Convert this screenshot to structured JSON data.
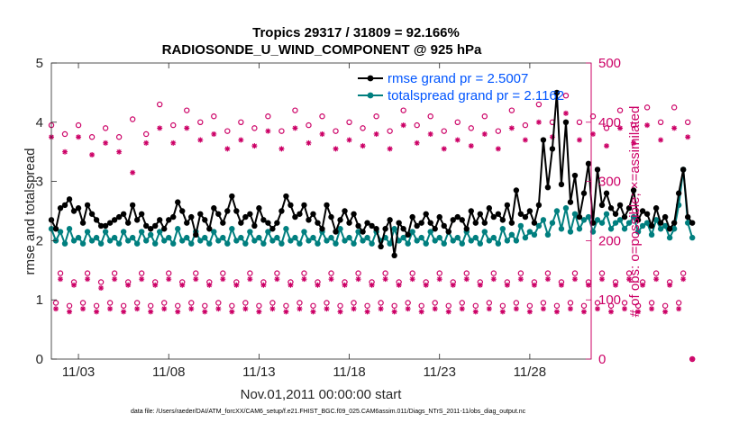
{
  "chart_data": {
    "type": "line",
    "title": "Tropics 29317 / 31809 = 92.166%",
    "subtitle": "RADIOSONDE_U_WIND_COMPONENT @ 925 hPa",
    "xlabel": "Nov.01,2011 00:00:00 start",
    "ylabel": "rmse and totalspread",
    "ylabel_right": "# of obs: o=possible; ×=assimilated",
    "footnote": "data file: /Users/raeder/DAI/ATM_forcXX/CAM6_setup/f.e21.FHIST_BGC.f09_025.CAM6assim.011/Diags_NTrS_2011-11/obs_diag_output.nc",
    "xlim": [
      1.5,
      31.4
    ],
    "ylim": [
      0,
      5
    ],
    "ylim_right": [
      0,
      500
    ],
    "x_ticks": [
      3,
      8,
      13,
      18,
      23,
      28
    ],
    "x_tick_labels": [
      "11/03",
      "11/08",
      "11/13",
      "11/18",
      "11/23",
      "11/28"
    ],
    "y_ticks": [
      0,
      1,
      2,
      3,
      4,
      5
    ],
    "y_tick_labels": [
      "0",
      "1",
      "2",
      "3",
      "4",
      "5"
    ],
    "y_ticks_right": [
      0,
      100,
      200,
      300,
      400,
      500
    ],
    "y_tick_labels_right": [
      "0",
      "100",
      "200",
      "300",
      "400",
      "500"
    ],
    "legend": [
      {
        "label": "rmse grand pr = 2.5007",
        "color": "#000000"
      },
      {
        "label": "totalspread grand pr = 2.1162",
        "color": "#007f7f"
      }
    ],
    "colors": {
      "rmse": "#000000",
      "spread": "#007f7f",
      "obs": "#cc0066"
    },
    "series": [
      {
        "name": "rmse",
        "start": 1.5,
        "step": 0.25,
        "values": [
          2.35,
          2.2,
          2.55,
          2.6,
          2.7,
          2.5,
          2.55,
          2.3,
          2.6,
          2.45,
          2.35,
          2.25,
          2.25,
          2.3,
          2.35,
          2.4,
          2.45,
          2.3,
          2.6,
          2.35,
          2.45,
          2.25,
          2.2,
          2.25,
          2.35,
          2.2,
          2.35,
          2.4,
          2.65,
          2.5,
          2.3,
          2.4,
          2.1,
          2.45,
          2.35,
          2.2,
          2.55,
          2.45,
          2.3,
          2.5,
          2.75,
          2.5,
          2.3,
          2.4,
          2.45,
          2.25,
          2.55,
          2.35,
          2.3,
          2.2,
          2.3,
          2.5,
          2.75,
          2.6,
          2.4,
          2.45,
          2.6,
          2.35,
          2.45,
          2.3,
          2.2,
          2.6,
          2.4,
          2.15,
          2.35,
          2.5,
          2.3,
          2.45,
          2.25,
          2.15,
          2.3,
          2.25,
          2.2,
          1.9,
          2.2,
          2.35,
          1.75,
          2.3,
          2.2,
          2.1,
          2.4,
          2.25,
          2.3,
          2.45,
          2.3,
          2.2,
          2.4,
          2.25,
          2.15,
          2.35,
          2.4,
          2.35,
          2.2,
          2.5,
          2.3,
          2.45,
          2.3,
          2.55,
          2.4,
          2.45,
          2.35,
          2.6,
          2.3,
          2.85,
          2.45,
          2.4,
          2.5,
          2.3,
          2.6,
          3.7,
          2.9,
          3.55,
          4.5,
          2.95,
          4.0,
          2.65,
          3.1,
          2.4,
          2.8,
          3.3,
          2.3,
          3.2,
          2.6,
          2.8,
          2.55,
          2.45,
          2.6,
          2.4,
          2.55,
          2.85,
          2.35,
          2.5,
          2.45,
          2.25,
          2.55,
          2.3,
          2.4,
          2.2,
          2.3,
          2.8,
          3.2,
          2.4,
          2.3
        ]
      },
      {
        "name": "totalspread",
        "start": 1.5,
        "step": 0.25,
        "values": [
          2.2,
          2.0,
          2.15,
          1.95,
          2.2,
          2.0,
          2.05,
          1.95,
          2.15,
          2.0,
          2.05,
          1.95,
          2.15,
          2.0,
          2.05,
          1.95,
          2.15,
          2.0,
          2.05,
          1.95,
          2.15,
          2.0,
          2.1,
          1.95,
          2.15,
          2.0,
          2.05,
          1.95,
          2.2,
          2.0,
          2.05,
          1.95,
          2.15,
          2.0,
          2.05,
          1.95,
          2.15,
          2.0,
          2.05,
          1.95,
          2.2,
          2.0,
          2.05,
          1.95,
          2.15,
          2.0,
          2.05,
          1.95,
          2.15,
          2.0,
          2.05,
          1.95,
          2.2,
          2.0,
          2.05,
          1.95,
          2.15,
          2.0,
          2.05,
          1.95,
          2.15,
          2.0,
          2.05,
          1.95,
          2.2,
          2.0,
          2.05,
          1.95,
          2.15,
          2.0,
          2.05,
          1.95,
          2.15,
          2.0,
          2.05,
          1.95,
          2.2,
          2.0,
          2.05,
          1.95,
          2.15,
          2.0,
          2.05,
          1.95,
          2.15,
          2.0,
          2.05,
          1.95,
          2.15,
          2.0,
          2.05,
          1.95,
          2.15,
          2.0,
          2.05,
          1.95,
          2.15,
          2.0,
          2.05,
          1.95,
          2.2,
          2.0,
          2.1,
          2.0,
          2.25,
          2.05,
          2.15,
          2.1,
          2.25,
          2.35,
          2.1,
          2.3,
          2.5,
          2.2,
          2.55,
          2.15,
          2.45,
          2.2,
          2.35,
          2.4,
          2.15,
          2.35,
          2.3,
          2.45,
          2.2,
          2.3,
          2.35,
          2.2,
          2.3,
          2.4,
          2.15,
          2.25,
          2.3,
          2.1,
          2.35,
          2.2,
          2.25,
          2.05,
          2.2,
          2.6,
          3.2,
          2.3,
          2.05
        ]
      },
      {
        "name": "obs_possible",
        "axis": "right",
        "start": 1.5,
        "step": 0.25,
        "values": [
          395,
          95,
          145,
          380,
          90,
          130,
          395,
          95,
          145,
          375,
          90,
          130,
          390,
          95,
          145,
          375,
          90,
          130,
          405,
          95,
          145,
          380,
          90,
          130,
          430,
          95,
          145,
          395,
          90,
          130,
          420,
          95,
          145,
          400,
          90,
          130,
          410,
          95,
          145,
          385,
          90,
          130,
          400,
          95,
          145,
          390,
          90,
          130,
          410,
          95,
          145,
          385,
          90,
          130,
          420,
          95,
          145,
          395,
          90,
          130,
          410,
          95,
          145,
          385,
          90,
          130,
          400,
          95,
          145,
          390,
          90,
          130,
          410,
          95,
          145,
          385,
          90,
          130,
          420,
          95,
          145,
          395,
          90,
          130,
          410,
          95,
          145,
          385,
          90,
          130,
          400,
          95,
          145,
          390,
          90,
          130,
          410,
          95,
          145,
          385,
          90,
          130,
          420,
          95,
          145,
          395,
          90,
          130,
          430,
          95,
          145,
          400,
          90,
          130,
          445,
          95,
          145,
          400,
          90,
          130,
          410,
          95,
          145,
          390,
          90,
          130,
          420,
          95,
          145,
          395,
          90,
          130,
          425,
          95,
          145,
          400,
          90,
          130,
          425,
          95,
          145,
          400,
          0
        ]
      },
      {
        "name": "obs_assimilated",
        "axis": "right",
        "start": 1.5,
        "step": 0.25,
        "values": [
          375,
          85,
          135,
          350,
          80,
          125,
          375,
          85,
          135,
          345,
          80,
          120,
          365,
          85,
          135,
          350,
          80,
          125,
          315,
          85,
          135,
          365,
          80,
          125,
          390,
          85,
          135,
          365,
          80,
          125,
          390,
          85,
          135,
          370,
          80,
          125,
          380,
          85,
          135,
          355,
          80,
          125,
          370,
          85,
          135,
          360,
          80,
          125,
          385,
          85,
          135,
          355,
          80,
          125,
          390,
          85,
          135,
          365,
          80,
          125,
          380,
          85,
          135,
          355,
          80,
          125,
          370,
          85,
          135,
          360,
          80,
          125,
          380,
          85,
          135,
          355,
          80,
          125,
          395,
          85,
          135,
          365,
          80,
          125,
          380,
          85,
          135,
          355,
          80,
          125,
          370,
          85,
          135,
          360,
          80,
          125,
          380,
          85,
          135,
          355,
          80,
          125,
          390,
          85,
          135,
          370,
          80,
          125,
          400,
          85,
          135,
          375,
          80,
          125,
          415,
          85,
          135,
          370,
          80,
          125,
          380,
          85,
          135,
          360,
          80,
          125,
          390,
          85,
          135,
          365,
          80,
          125,
          395,
          85,
          135,
          370,
          80,
          125,
          390,
          85,
          135,
          375,
          0
        ]
      }
    ]
  }
}
